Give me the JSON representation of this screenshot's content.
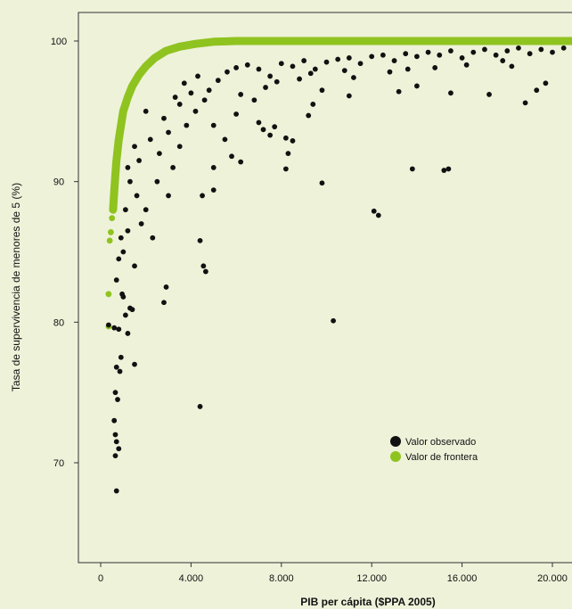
{
  "chart_data": {
    "type": "scatter",
    "title": "",
    "xlabel": "PIB per cápita ($PPA 2005)",
    "ylabel": "Tasa de supervivencia de menores de 5 (%)",
    "xlim": [
      -1000,
      21000
    ],
    "ylim": [
      63,
      102
    ],
    "x_ticks": [
      0,
      4000,
      8000,
      12000,
      16000,
      20000
    ],
    "x_tick_labels": [
      "0",
      "4.000",
      "8.000",
      "12.000",
      "16.000",
      "20.000"
    ],
    "y_ticks": [
      70,
      80,
      90,
      100
    ],
    "y_tick_labels": [
      "70",
      "80",
      "90",
      "100"
    ],
    "grid": false,
    "legend_position": "center-right",
    "series": [
      {
        "name": "Valor observado",
        "color": "#111111",
        "points": [
          [
            700,
            68.0
          ],
          [
            4400,
            74.0
          ],
          [
            10300,
            80.1
          ],
          [
            350,
            79.8
          ],
          [
            600,
            79.6
          ],
          [
            800,
            79.5
          ],
          [
            1200,
            79.2
          ],
          [
            1500,
            77.0
          ],
          [
            900,
            77.5
          ],
          [
            700,
            76.8
          ],
          [
            850,
            76.5
          ],
          [
            650,
            75.0
          ],
          [
            750,
            74.5
          ],
          [
            600,
            73.0
          ],
          [
            650,
            72.0
          ],
          [
            700,
            71.5
          ],
          [
            800,
            71.0
          ],
          [
            650,
            70.5
          ],
          [
            1100,
            80.5
          ],
          [
            1300,
            81.0
          ],
          [
            1400,
            80.9
          ],
          [
            1000,
            81.8
          ],
          [
            2800,
            81.4
          ],
          [
            2900,
            82.5
          ],
          [
            4550,
            84.0
          ],
          [
            4650,
            83.6
          ],
          [
            4400,
            85.8
          ],
          [
            12100,
            87.9
          ],
          [
            12300,
            87.6
          ],
          [
            9800,
            89.9
          ],
          [
            13800,
            90.9
          ],
          [
            15200,
            90.8
          ],
          [
            15400,
            90.9
          ],
          [
            8200,
            90.9
          ],
          [
            8300,
            92.0
          ],
          [
            8200,
            93.1
          ],
          [
            8500,
            92.9
          ],
          [
            4500,
            89.0
          ],
          [
            5000,
            89.4
          ],
          [
            5000,
            91.0
          ],
          [
            5800,
            91.8
          ],
          [
            6200,
            91.4
          ],
          [
            7000,
            94.2
          ],
          [
            7200,
            93.7
          ],
          [
            7500,
            93.3
          ],
          [
            7700,
            93.9
          ],
          [
            9200,
            94.7
          ],
          [
            9400,
            95.5
          ],
          [
            9800,
            96.5
          ],
          [
            11000,
            96.1
          ],
          [
            13200,
            96.4
          ],
          [
            14000,
            96.8
          ],
          [
            15500,
            96.3
          ],
          [
            17200,
            96.2
          ],
          [
            18800,
            95.6
          ],
          [
            19300,
            96.5
          ],
          [
            19700,
            97.0
          ],
          [
            1000,
            85.0
          ],
          [
            1200,
            86.5
          ],
          [
            1500,
            84.0
          ],
          [
            1800,
            87.0
          ],
          [
            2000,
            88.0
          ],
          [
            2300,
            86.0
          ],
          [
            2500,
            90.0
          ],
          [
            3000,
            89.0
          ],
          [
            3200,
            91.0
          ],
          [
            3500,
            92.5
          ],
          [
            3800,
            94.0
          ],
          [
            4200,
            95.0
          ],
          [
            2200,
            93.0
          ],
          [
            1700,
            91.5
          ],
          [
            1300,
            90.0
          ],
          [
            1100,
            88.0
          ],
          [
            900,
            86.0
          ],
          [
            800,
            84.5
          ],
          [
            700,
            83.0
          ],
          [
            950,
            82.0
          ],
          [
            1600,
            89.0
          ],
          [
            2600,
            92.0
          ],
          [
            2800,
            94.5
          ],
          [
            3300,
            96.0
          ],
          [
            3700,
            97.0
          ],
          [
            4300,
            97.5
          ],
          [
            4800,
            96.5
          ],
          [
            5200,
            97.2
          ],
          [
            5600,
            97.8
          ],
          [
            6000,
            98.1
          ],
          [
            6500,
            98.3
          ],
          [
            7000,
            98.0
          ],
          [
            7500,
            97.5
          ],
          [
            8000,
            98.4
          ],
          [
            8500,
            98.2
          ],
          [
            9000,
            98.6
          ],
          [
            9500,
            98.0
          ],
          [
            10000,
            98.5
          ],
          [
            10500,
            98.7
          ],
          [
            11000,
            98.8
          ],
          [
            11500,
            98.4
          ],
          [
            12000,
            98.9
          ],
          [
            12500,
            99.0
          ],
          [
            13000,
            98.6
          ],
          [
            13500,
            99.1
          ],
          [
            14000,
            98.9
          ],
          [
            14500,
            99.2
          ],
          [
            15000,
            99.0
          ],
          [
            15500,
            99.3
          ],
          [
            16000,
            98.8
          ],
          [
            16500,
            99.2
          ],
          [
            17000,
            99.4
          ],
          [
            17500,
            99.0
          ],
          [
            18000,
            99.3
          ],
          [
            18500,
            99.5
          ],
          [
            19000,
            99.1
          ],
          [
            19500,
            99.4
          ],
          [
            20000,
            99.2
          ],
          [
            20500,
            99.5
          ],
          [
            6200,
            96.2
          ],
          [
            6800,
            95.8
          ],
          [
            7300,
            96.7
          ],
          [
            7800,
            97.1
          ],
          [
            8800,
            97.3
          ],
          [
            9300,
            97.7
          ],
          [
            10800,
            97.9
          ],
          [
            11200,
            97.4
          ],
          [
            12800,
            97.8
          ],
          [
            13600,
            98.0
          ],
          [
            14800,
            98.1
          ],
          [
            16200,
            98.3
          ],
          [
            17800,
            98.6
          ],
          [
            18200,
            98.2
          ],
          [
            2000,
            95.0
          ],
          [
            1500,
            92.5
          ],
          [
            1200,
            91.0
          ],
          [
            3000,
            93.5
          ],
          [
            3500,
            95.5
          ],
          [
            4000,
            96.3
          ],
          [
            4600,
            95.8
          ],
          [
            5000,
            94.0
          ],
          [
            5500,
            93.0
          ],
          [
            6000,
            94.8
          ]
        ]
      },
      {
        "name": "Valor de frontera",
        "color": "#8fc31f",
        "points": [
          [
            350,
            79.7
          ],
          [
            350,
            82.0
          ],
          [
            400,
            85.8
          ],
          [
            450,
            86.4
          ],
          [
            500,
            87.4
          ],
          [
            550,
            88.0
          ],
          [
            600,
            89.3
          ],
          [
            650,
            90.5
          ],
          [
            700,
            91.5
          ],
          [
            800,
            93.0
          ],
          [
            900,
            94.0
          ],
          [
            1000,
            95.0
          ],
          [
            1200,
            96.0
          ],
          [
            1400,
            96.8
          ],
          [
            1700,
            97.6
          ],
          [
            2000,
            98.2
          ],
          [
            2400,
            98.8
          ],
          [
            2900,
            99.3
          ],
          [
            3500,
            99.6
          ],
          [
            4200,
            99.8
          ],
          [
            5000,
            99.95
          ],
          [
            6000,
            100.0
          ],
          [
            7000,
            100.0
          ],
          [
            8000,
            100.0
          ],
          [
            9000,
            100.0
          ],
          [
            10000,
            100.0
          ],
          [
            11000,
            100.0
          ],
          [
            12000,
            100.0
          ],
          [
            13000,
            100.0
          ],
          [
            14000,
            100.0
          ],
          [
            15000,
            100.0
          ],
          [
            16000,
            100.0
          ],
          [
            17000,
            100.0
          ],
          [
            18000,
            100.0
          ],
          [
            19000,
            100.0
          ],
          [
            20000,
            100.0
          ],
          [
            20900,
            100.0
          ]
        ]
      }
    ]
  }
}
